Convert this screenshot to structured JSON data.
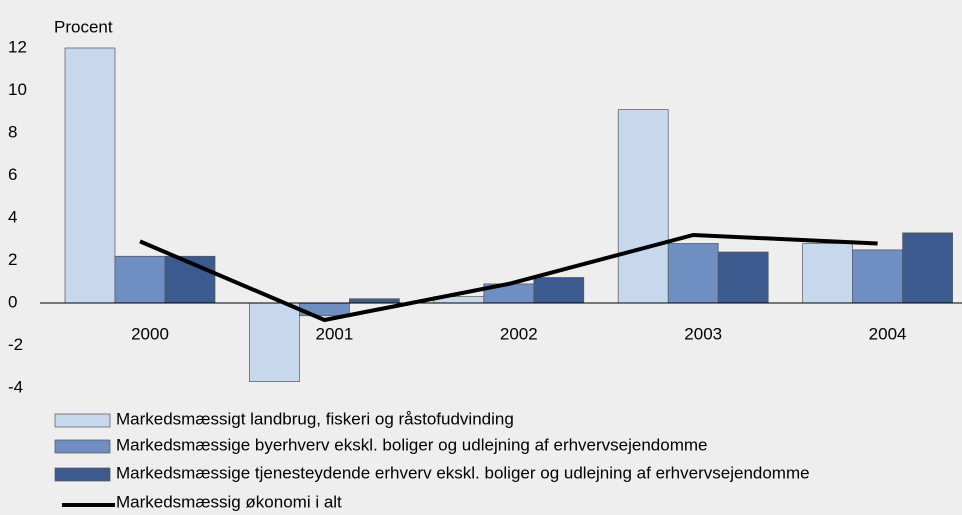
{
  "chart_data": {
    "type": "bar",
    "y_label": "Procent",
    "categories": [
      "2000",
      "2001",
      "2002",
      "2003",
      "2004"
    ],
    "series": [
      {
        "name": "Markedsmæssigt landbrug, fiskeri og råstofudvinding",
        "color": "#c8d8ec",
        "values": [
          12.0,
          -3.7,
          0.3,
          9.1,
          2.8
        ]
      },
      {
        "name": "Markedsmæssige byerhverv ekskl. boliger og udlejning af erhvervsejendomme",
        "color": "#6f8ec2",
        "values": [
          2.2,
          -0.6,
          0.9,
          2.8,
          2.5
        ]
      },
      {
        "name": "Markedsmæssige tjenesteydende erhverv ekskl. boliger og udlejning af erhvervsejendomme",
        "color": "#3d5a8e",
        "values": [
          2.2,
          0.2,
          1.2,
          2.4,
          3.3
        ]
      },
      {
        "name": "Markedsmæssig økonomi i alt",
        "type": "line",
        "color": "#000000",
        "values": [
          2.9,
          -0.8,
          0.9,
          3.2,
          2.8
        ]
      }
    ],
    "ylim": [
      -4,
      12
    ],
    "yticks": [
      -4,
      -2,
      0,
      2,
      4,
      6,
      8,
      10,
      12
    ],
    "grid": false
  }
}
